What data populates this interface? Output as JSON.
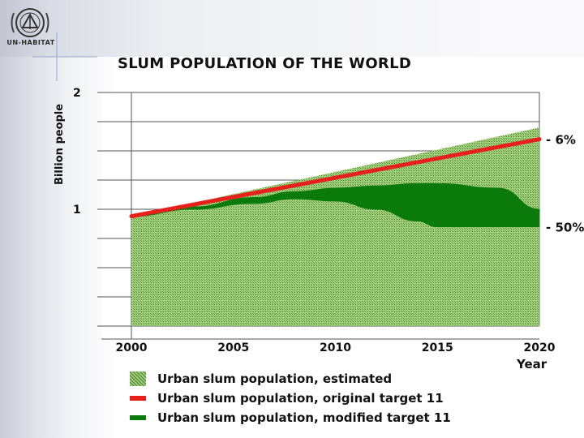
{
  "branding": {
    "logo_name": "un-habitat-logo",
    "logo_text": "UN-HABITAT"
  },
  "colors": {
    "estimated_fill": "#8fc06a",
    "estimated_hatch": "#5a8a3a",
    "original_target": "#e8201c",
    "modified_target": "#0a7a0a",
    "grid": "#555555"
  },
  "chart_data": {
    "type": "area",
    "title": "SLUM POPULATION OF THE WORLD",
    "ylabel": "Billion people",
    "xlabel": "",
    "x_ticks": [
      "2000",
      "2005",
      "2010",
      "2015",
      "2020"
    ],
    "x_unit_label": "Year",
    "y_ticks": [
      "2",
      "1"
    ],
    "xlim": [
      2000,
      2020
    ],
    "ylim": [
      0,
      2
    ],
    "grid": true,
    "series": [
      {
        "name": "Urban slum population, estimated",
        "style": "hatched-area",
        "x": [
          2000,
          2020
        ],
        "y": [
          0.94,
          1.7
        ]
      },
      {
        "name": "Urban slum population, original target 11",
        "style": "line",
        "x": [
          2000,
          2020
        ],
        "y": [
          0.94,
          1.6
        ]
      },
      {
        "name": "Urban slum population, modified target 11",
        "style": "band",
        "x": [
          2000,
          2003,
          2006,
          2008,
          2010,
          2012,
          2014,
          2015,
          2018,
          2020
        ],
        "y_upper": [
          0.94,
          1.02,
          1.1,
          1.15,
          1.18,
          1.2,
          1.22,
          1.22,
          1.18,
          1.0
        ],
        "y_lower": [
          0.94,
          1.0,
          1.05,
          1.09,
          1.07,
          1.0,
          0.9,
          0.85,
          0.85,
          0.85
        ]
      }
    ],
    "annotations": [
      {
        "text": "- 6%",
        "at_x": 2020,
        "at_y": 1.6
      },
      {
        "text": "- 50%",
        "at_x": 2020,
        "at_y": 0.85
      }
    ],
    "legend_position": "bottom"
  },
  "legend": [
    {
      "label": "Urban slum population, estimated",
      "kind": "hatch"
    },
    {
      "label": "Urban slum population, original target 11",
      "kind": "red"
    },
    {
      "label": "Urban slum population, modified target 11",
      "kind": "green"
    }
  ]
}
